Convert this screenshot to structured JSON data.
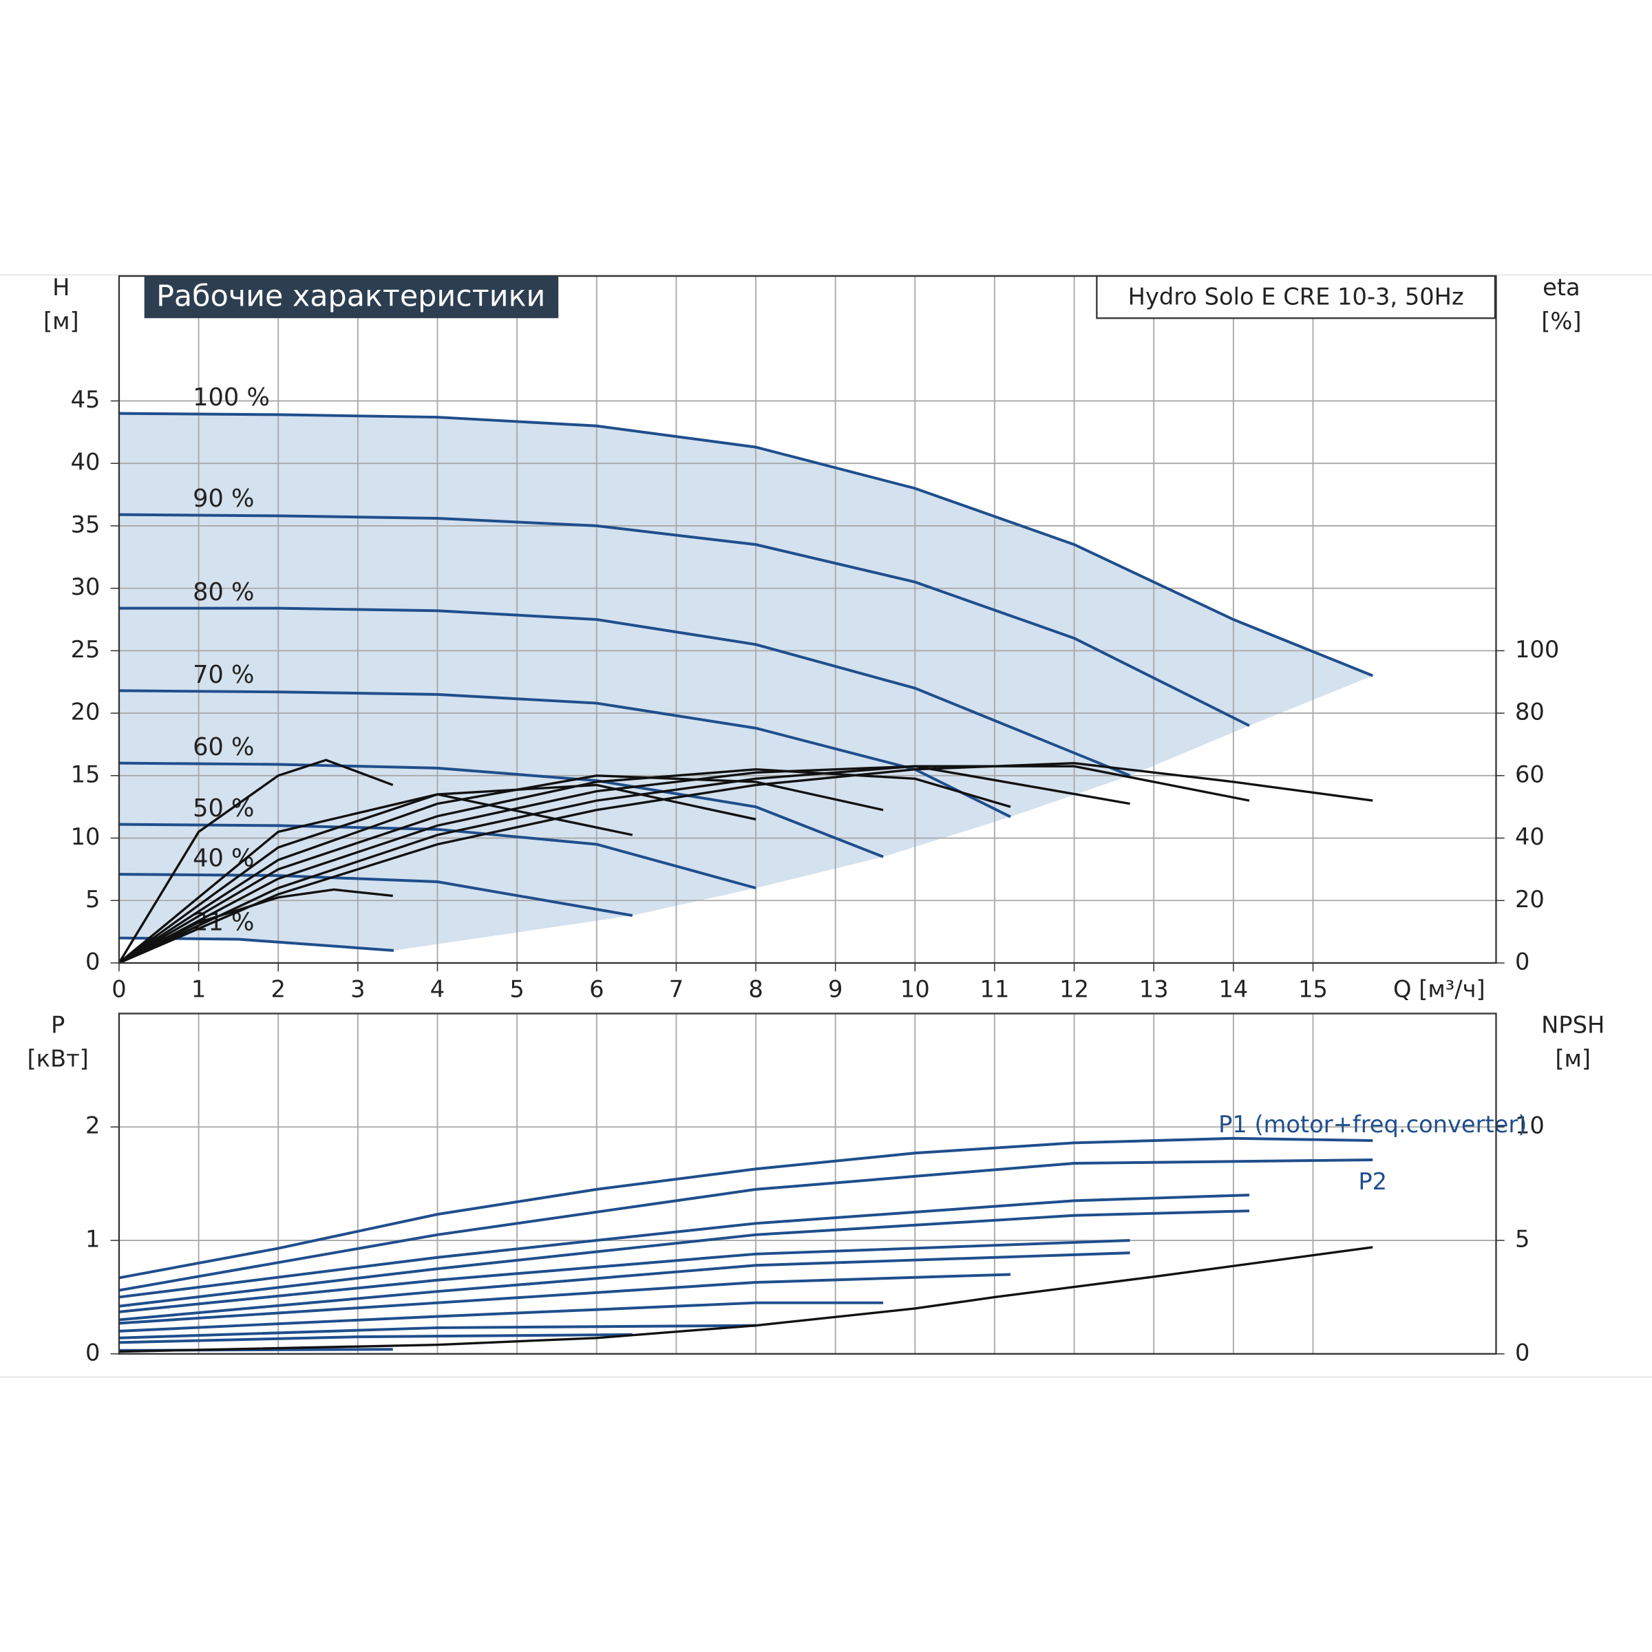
{
  "chart_data": [
    {
      "type": "line",
      "title": "Рабочие характеристики",
      "subtitle": "Hydro Solo E CRE 10-3, 50Hz",
      "y_label": "H",
      "y_unit": "[м]",
      "y2_label": "eta",
      "y2_unit": "[%]",
      "x_label": "Q [м³/ч]",
      "xlim": [
        0,
        17.3
      ],
      "xticks": [
        0,
        1,
        2,
        3,
        4,
        5,
        6,
        7,
        8,
        9,
        10,
        11,
        12,
        13,
        14,
        15
      ],
      "ylim": [
        0,
        55
      ],
      "yticks": [
        0,
        5,
        10,
        15,
        20,
        25,
        30,
        35,
        40,
        45
      ],
      "y2lim": [
        0,
        220
      ],
      "y2ticks": [
        0,
        20,
        40,
        60,
        80,
        100
      ],
      "grid": true,
      "region_color": "#d4e1ee",
      "series": [
        {
          "name": "100 %",
          "color": "#1f4e8c",
          "x": [
            0,
            2,
            4,
            6,
            8,
            10,
            12,
            14,
            15.75
          ],
          "values": [
            44,
            43.9,
            43.7,
            43,
            41.3,
            38,
            33.5,
            27.5,
            23
          ]
        },
        {
          "name": "90 %",
          "color": "#1f4e8c",
          "x": [
            0,
            2,
            4,
            6,
            8,
            10,
            12,
            14.2
          ],
          "values": [
            35.9,
            35.8,
            35.6,
            35,
            33.5,
            30.5,
            26,
            19
          ]
        },
        {
          "name": "80 %",
          "color": "#1f4e8c",
          "x": [
            0,
            2,
            4,
            6,
            8,
            10,
            12.7
          ],
          "values": [
            28.4,
            28.4,
            28.2,
            27.5,
            25.5,
            22,
            15
          ]
        },
        {
          "name": "70 %",
          "color": "#1f4e8c",
          "x": [
            0,
            2,
            4,
            6,
            8,
            10,
            11.2
          ],
          "values": [
            21.8,
            21.7,
            21.5,
            20.8,
            18.8,
            15.5,
            11.7
          ]
        },
        {
          "name": "60 %",
          "color": "#1f4e8c",
          "x": [
            0,
            2,
            4,
            6,
            8,
            9.6
          ],
          "values": [
            16,
            15.9,
            15.6,
            14.6,
            12.5,
            8.5
          ]
        },
        {
          "name": "50 %",
          "color": "#1f4e8c",
          "x": [
            0,
            2,
            4,
            6,
            8
          ],
          "values": [
            11.1,
            11,
            10.7,
            9.5,
            6
          ]
        },
        {
          "name": "40 %",
          "color": "#1f4e8c",
          "x": [
            0,
            2,
            4,
            6.45
          ],
          "values": [
            7.1,
            7,
            6.5,
            3.8
          ]
        },
        {
          "name": "21 %",
          "color": "#1f4e8c",
          "x": [
            0,
            1.5,
            3.45
          ],
          "values": [
            2,
            1.9,
            1
          ]
        },
        {
          "axis": "y2",
          "color": "#111111",
          "x": [
            0,
            2,
            4,
            6,
            8,
            10,
            12,
            14,
            15.75
          ],
          "values": [
            0,
            22,
            38,
            49,
            57,
            62,
            64,
            58,
            52
          ]
        },
        {
          "axis": "y2",
          "color": "#111111",
          "x": [
            0,
            2,
            4,
            6,
            8,
            10,
            12,
            14.2
          ],
          "values": [
            0,
            24,
            41,
            52,
            59,
            63,
            63,
            52
          ]
        },
        {
          "axis": "y2",
          "color": "#111111",
          "x": [
            0,
            2,
            4,
            6,
            8,
            10,
            12.7
          ],
          "values": [
            0,
            27,
            44,
            55,
            61,
            63,
            51
          ]
        },
        {
          "axis": "y2",
          "color": "#111111",
          "x": [
            0,
            2,
            4,
            6,
            8,
            10,
            11.2
          ],
          "values": [
            0,
            30,
            47,
            58,
            62,
            59,
            50
          ]
        },
        {
          "axis": "y2",
          "color": "#111111",
          "x": [
            0,
            2,
            4,
            6,
            8,
            9.6
          ],
          "values": [
            0,
            33,
            51,
            60,
            58,
            49
          ]
        },
        {
          "axis": "y2",
          "color": "#111111",
          "x": [
            0,
            2,
            4,
            6,
            8
          ],
          "values": [
            0,
            37,
            54,
            57,
            46
          ]
        },
        {
          "axis": "y2",
          "color": "#111111",
          "x": [
            0,
            2,
            4,
            6.45
          ],
          "values": [
            0,
            42,
            54,
            41
          ]
        },
        {
          "axis": "y2",
          "color": "#111111",
          "x": [
            0,
            1,
            2,
            2.6,
            3.44
          ],
          "values": [
            0,
            42,
            60,
            65,
            57
          ]
        },
        {
          "axis": "y2",
          "color": "#111111",
          "x": [
            0,
            1,
            2,
            2.7,
            3.44
          ],
          "values": [
            0,
            13,
            21,
            23.5,
            21.5
          ]
        }
      ]
    },
    {
      "type": "line",
      "y_label": "P",
      "y_unit": "[кВт]",
      "y2_label": "NPSH",
      "y2_unit": "[м]",
      "xlim": [
        0,
        17.3
      ],
      "ylim": [
        0,
        3
      ],
      "yticks": [
        0,
        1,
        2
      ],
      "y2lim": [
        0,
        15
      ],
      "y2ticks": [
        0,
        5,
        10
      ],
      "grid": true,
      "series": [
        {
          "name": "P1 (motor+freq.converter)",
          "color": "#1f4e8c",
          "x": [
            0,
            2,
            4,
            6,
            8,
            10,
            12,
            14,
            15.75
          ],
          "values": [
            0.67,
            0.93,
            1.23,
            1.45,
            1.63,
            1.77,
            1.86,
            1.9,
            1.88
          ]
        },
        {
          "name": "P2",
          "color": "#1f4e8c",
          "x": [
            0,
            4,
            8,
            12,
            15.75
          ],
          "values": [
            0.56,
            1.05,
            1.45,
            1.68,
            1.71
          ]
        },
        {
          "color": "#1f4e8c",
          "x": [
            0,
            4,
            8,
            12,
            14.2
          ],
          "values": [
            0.5,
            0.85,
            1.15,
            1.35,
            1.4
          ]
        },
        {
          "color": "#1f4e8c",
          "x": [
            0,
            4,
            8,
            12,
            14.2
          ],
          "values": [
            0.42,
            0.75,
            1.05,
            1.22,
            1.26
          ]
        },
        {
          "color": "#1f4e8c",
          "x": [
            0,
            4,
            8,
            12.7
          ],
          "values": [
            0.37,
            0.65,
            0.88,
            1
          ]
        },
        {
          "color": "#1f4e8c",
          "x": [
            0,
            4,
            8,
            12.7
          ],
          "values": [
            0.3,
            0.55,
            0.78,
            0.89
          ]
        },
        {
          "color": "#1f4e8c",
          "x": [
            0,
            4,
            8,
            11.2
          ],
          "values": [
            0.27,
            0.45,
            0.63,
            0.7
          ]
        },
        {
          "color": "#1f4e8c",
          "x": [
            0,
            4,
            8,
            9.6
          ],
          "values": [
            0.2,
            0.33,
            0.45,
            0.45
          ]
        },
        {
          "color": "#1f4e8c",
          "x": [
            0,
            4,
            8
          ],
          "values": [
            0.14,
            0.23,
            0.25
          ]
        },
        {
          "color": "#1f4e8c",
          "x": [
            0,
            3,
            6.45
          ],
          "values": [
            0.1,
            0.15,
            0.17
          ]
        },
        {
          "color": "#1f4e8c",
          "x": [
            0,
            3.44
          ],
          "values": [
            0.03,
            0.04
          ]
        },
        {
          "axis": "y2",
          "color": "#111111",
          "x": [
            0,
            4,
            6,
            8,
            10,
            11,
            13,
            15.75
          ],
          "values": [
            0.1,
            0.4,
            0.7,
            1.25,
            2,
            2.5,
            3.4,
            4.7
          ]
        }
      ]
    }
  ]
}
